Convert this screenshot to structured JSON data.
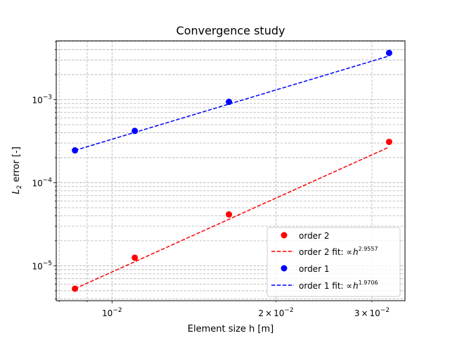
{
  "chart_data": {
    "type": "scatter",
    "title": "Convergence study",
    "xlabel": "Element size h [m]",
    "ylabel_main": "L",
    "ylabel_sub": "2",
    "ylabel_rest": " error [-]",
    "xscale": "log",
    "yscale": "log",
    "xlim": [
      0.0079,
      0.0345
    ],
    "ylim": [
      3.8e-06,
      0.0051
    ],
    "grid": true,
    "legend_position": "lower-right",
    "x_major_ticks": [
      {
        "value": 0.01,
        "base": "10",
        "exp": "−2"
      }
    ],
    "x_minor_labeled_ticks": [
      {
        "value": 0.02,
        "mantissa": "2",
        "base": "10",
        "exp": "−2"
      },
      {
        "value": 0.03,
        "mantissa": "3",
        "base": "10",
        "exp": "−2"
      }
    ],
    "x_minor_ticks": [
      0.008,
      0.009,
      0.02,
      0.03
    ],
    "y_major_ticks": [
      {
        "value": 1e-05,
        "base": "10",
        "exp": "−5"
      },
      {
        "value": 0.0001,
        "base": "10",
        "exp": "−4"
      },
      {
        "value": 0.001,
        "base": "10",
        "exp": "−3"
      }
    ],
    "series": [
      {
        "name": "order 2",
        "kind": "points",
        "color": "#ff0000",
        "x": [
          0.00855,
          0.01101,
          0.01639,
          0.03226
        ],
        "y": [
          5.3e-06,
          1.25e-05,
          4.15e-05,
          0.00031
        ]
      },
      {
        "name": "order 2 fit: ∝h",
        "exp_label": "2.9557",
        "kind": "fit",
        "color": "#ff0000",
        "exponent": 2.9557,
        "x_range": [
          0.00855,
          0.03226
        ],
        "y_at_start": 5.3e-06
      },
      {
        "name": "order 1",
        "kind": "points",
        "color": "#0000ff",
        "x": [
          0.00855,
          0.01101,
          0.01639,
          0.03226
        ],
        "y": [
          0.000245,
          0.00042,
          0.00094,
          0.00365
        ]
      },
      {
        "name": "order 1 fit: ∝h",
        "exp_label": "1.9706",
        "kind": "fit",
        "color": "#0000ff",
        "exponent": 1.9706,
        "x_range": [
          0.00855,
          0.03226
        ],
        "y_at_start": 0.000245
      }
    ]
  }
}
